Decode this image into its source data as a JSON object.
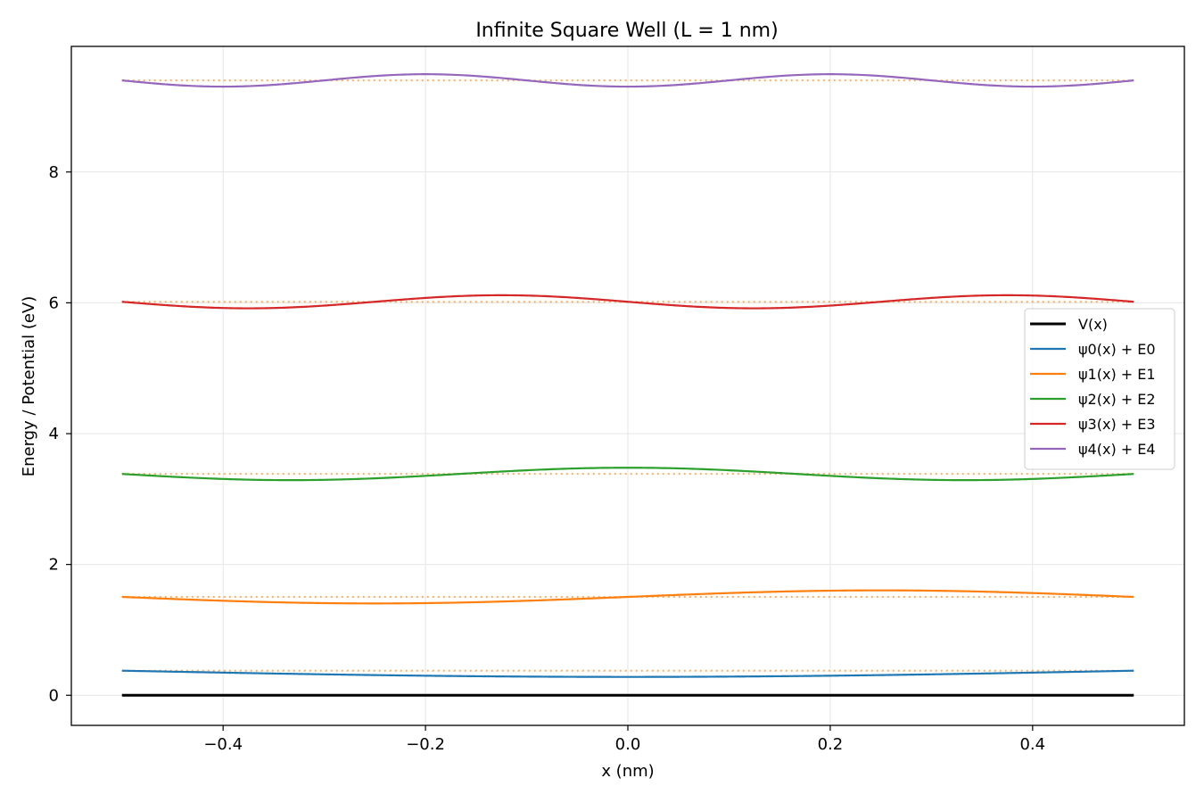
{
  "chart_data": {
    "type": "line",
    "title": "Infinite Square Well (L = 1 nm)",
    "xlabel": "x (nm)",
    "ylabel": "Energy / Potential (eV)",
    "xlim": [
      -0.55,
      0.55
    ],
    "ylim": [
      -0.46,
      9.92
    ],
    "xticks": [
      -0.4,
      -0.2,
      0.0,
      0.2,
      0.4
    ],
    "xtick_labels": [
      "−0.4",
      "−0.2",
      "0.0",
      "0.2",
      "0.4"
    ],
    "yticks": [
      0,
      2,
      4,
      6,
      8
    ],
    "ytick_labels": [
      "0",
      "2",
      "4",
      "6",
      "8"
    ],
    "grid": true,
    "legend_position": "center-right",
    "potential": {
      "name": "V(x)",
      "x": [
        -0.5,
        0.5
      ],
      "y": [
        0,
        0
      ],
      "color": "#000000"
    },
    "energy_levels": {
      "color": "#ff7f0e",
      "style": "dotted",
      "values": [
        0.376,
        1.504,
        3.384,
        6.016,
        9.4
      ]
    },
    "series": [
      {
        "name": "ψ0(x) + E0",
        "n": 1,
        "energy": 0.376,
        "amplitude": 0.095,
        "color": "#1f77b4"
      },
      {
        "name": "ψ1(x) + E1",
        "n": 2,
        "energy": 1.504,
        "amplitude": 0.1,
        "color": "#ff7f0e"
      },
      {
        "name": "ψ2(x) + E2",
        "n": 3,
        "energy": 3.384,
        "amplitude": 0.095,
        "color": "#2ca02c"
      },
      {
        "name": "ψ3(x) + E3",
        "n": 4,
        "energy": 6.016,
        "amplitude": 0.1,
        "color": "#d62728"
      },
      {
        "name": "ψ4(x) + E4",
        "n": 5,
        "energy": 9.4,
        "amplitude": 0.095,
        "color": "#9467bd"
      }
    ]
  }
}
